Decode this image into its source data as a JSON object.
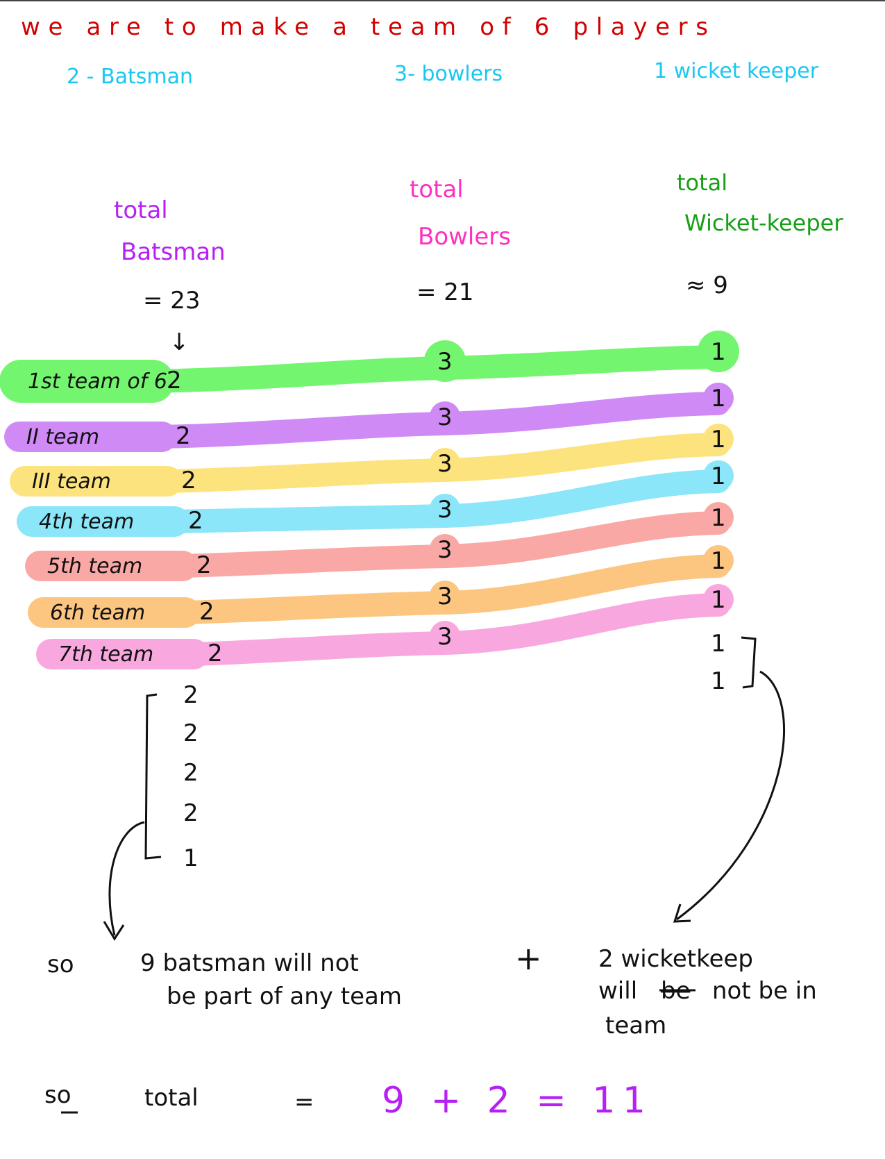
{
  "heading": "we are to make a team of 6 players",
  "composition": {
    "batsman": "2 - Batsman",
    "bowlers": "3- bowlers",
    "keeper": "1 wicket keeper"
  },
  "totals": {
    "batsman": {
      "label1": "total",
      "label2": "Batsman",
      "value": "= 23",
      "arrow": "↓"
    },
    "bowlers": {
      "label1": "total",
      "label2": "Bowlers",
      "value": "= 21"
    },
    "keeper": {
      "label1": "total",
      "label2": "Wicket-keeper",
      "value": "≈ 9"
    }
  },
  "teams": [
    {
      "label": "1st team of 6",
      "batsman": "2",
      "bowlers": "3",
      "keeper": "1",
      "color": "#74f56f"
    },
    {
      "label": "II team",
      "batsman": "2",
      "bowlers": "3",
      "keeper": "1",
      "color": "#cf8af5"
    },
    {
      "label": "III team",
      "batsman": "2",
      "bowlers": "3",
      "keeper": "1",
      "color": "#fde37e"
    },
    {
      "label": "4th team",
      "batsman": "2",
      "bowlers": "3",
      "keeper": "1",
      "color": "#8ae6f8"
    },
    {
      "label": "5th team",
      "batsman": "2",
      "bowlers": "3",
      "keeper": "1",
      "color": "#f9a8a5"
    },
    {
      "label": "6th team",
      "batsman": "2",
      "bowlers": "3",
      "keeper": "1",
      "color": "#fdc680"
    },
    {
      "label": "7th team",
      "batsman": "2",
      "bowlers": "3",
      "keeper": "1",
      "color": "#f9a8df"
    }
  ],
  "leftover_batsman": [
    "2",
    "2",
    "2",
    "2",
    "1"
  ],
  "leftover_keepers": [
    "1",
    "1"
  ],
  "conclusion": {
    "so": "so",
    "batsman_line1": "9 batsman will not",
    "batsman_line2": "be part of any team",
    "plus": "+",
    "keeper_line1": "2 wicketkeep",
    "keeper_line2_a": "will",
    "keeper_line2_struck": "be",
    "keeper_line2_b": "not be in",
    "keeper_line3": "team"
  },
  "final": {
    "so": "so",
    "total": "total",
    "equals": "=",
    "expression": "9 + 2 = 11"
  }
}
